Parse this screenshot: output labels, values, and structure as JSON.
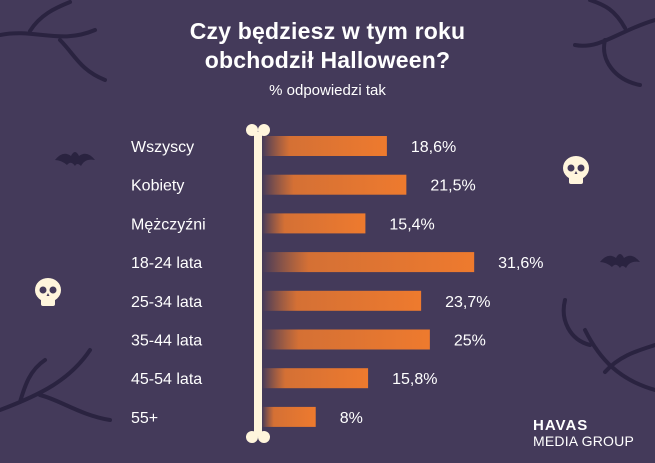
{
  "chart_data": {
    "type": "bar",
    "orientation": "horizontal",
    "title_line1": "Czy będziesz w tym roku",
    "title_line2": "obchodził Halloween?",
    "subtitle": "% odpowiedzi tak",
    "categories": [
      "Wszyscy",
      "Kobiety",
      "Mężczyźni",
      "18-24 lata",
      "25-34 lata",
      "35-44 lata",
      "45-54 lata",
      "55+"
    ],
    "values": [
      18.6,
      21.5,
      15.4,
      31.6,
      23.7,
      25,
      15.8,
      8
    ],
    "value_labels": [
      "18,6%",
      "21,5%",
      "15,4%",
      "31,6%",
      "23,7%",
      "25%",
      "15,8%",
      "8%"
    ],
    "xlim": [
      0,
      35
    ],
    "grid": false,
    "legend": "none"
  },
  "branding": {
    "logo_top": "HAVAS",
    "logo_bottom": "MEDIA GROUP"
  },
  "colors": {
    "background": "#443a5a",
    "bar": "#ee7a2e",
    "bar_fade": "#443a5a",
    "bone": "#fff5dc",
    "text": "#ffffff",
    "decor": "#2a2340"
  }
}
